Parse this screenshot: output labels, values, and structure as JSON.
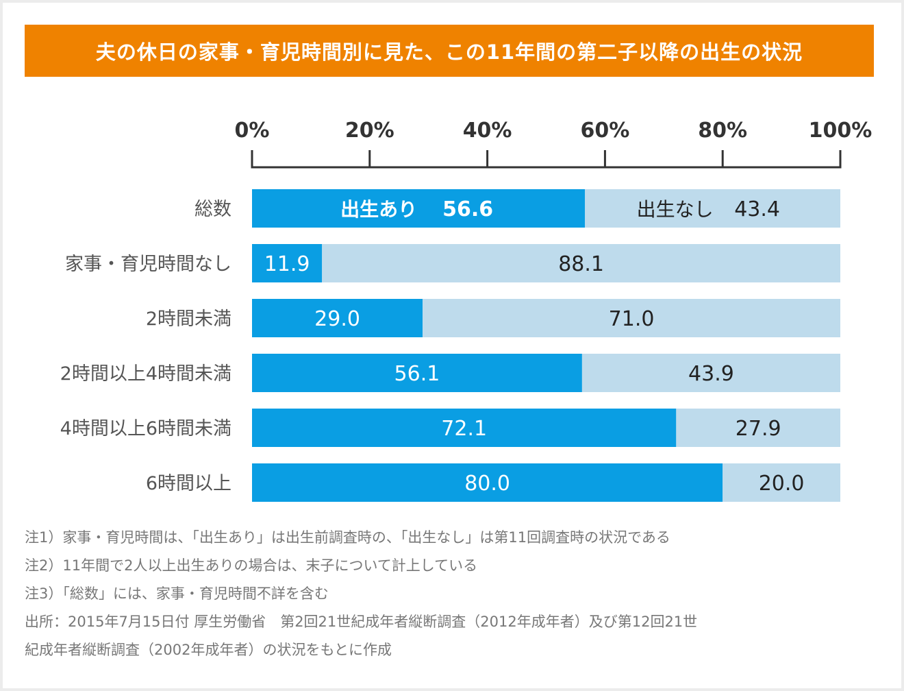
{
  "colors": {
    "banner": "#ef8200",
    "birth": "#0a9ee3",
    "no_birth": "#bedbec",
    "axis": "#333333",
    "category_text": "#555555",
    "notes_text": "#777777"
  },
  "chart_data": {
    "type": "bar",
    "orientation": "horizontal",
    "stacked": true,
    "percent": true,
    "title": "夫の休日の家事・育児時間別に見た、この11年間の第二子以降の出生の状況",
    "xlim": [
      0,
      100
    ],
    "x_ticks": [
      "0%",
      "20%",
      "40%",
      "60%",
      "80%",
      "100%"
    ],
    "categories": [
      "総数",
      "家事・育児時間なし",
      "2時間未満",
      "2時間以上4時間未満",
      "4時間以上6時間未満",
      "6時間以上"
    ],
    "series": [
      {
        "name": "出生あり",
        "values": [
          56.6,
          11.9,
          29.0,
          56.1,
          72.1,
          80.0
        ],
        "labels": [
          "56.6",
          "11.9",
          "29.0",
          "56.1",
          "72.1",
          "80.0"
        ]
      },
      {
        "name": "出生なし",
        "values": [
          43.4,
          88.1,
          71.0,
          43.9,
          27.9,
          20.0
        ],
        "labels": [
          "43.4",
          "88.1",
          "71.0",
          "43.9",
          "27.9",
          "20.0"
        ]
      }
    ],
    "grid": false,
    "legend": "inline in first bar"
  },
  "notes": [
    "注1）家事・育児時間は、「出生あり」は出生前調査時の、「出生なし」は第11回調査時の状況である",
    "注2）11年間で2人以上出生ありの場合は、末子について計上している",
    "注3）「総数」には、家事・育児時間不詳を含む",
    "出所：2015年7月15日付 厚生労働省　第2回21世紀成年者縦断調査（2012年成年者）及び第12回21世",
    "紀成年者縦断調査（2002年成年者）の状況をもとに作成"
  ]
}
